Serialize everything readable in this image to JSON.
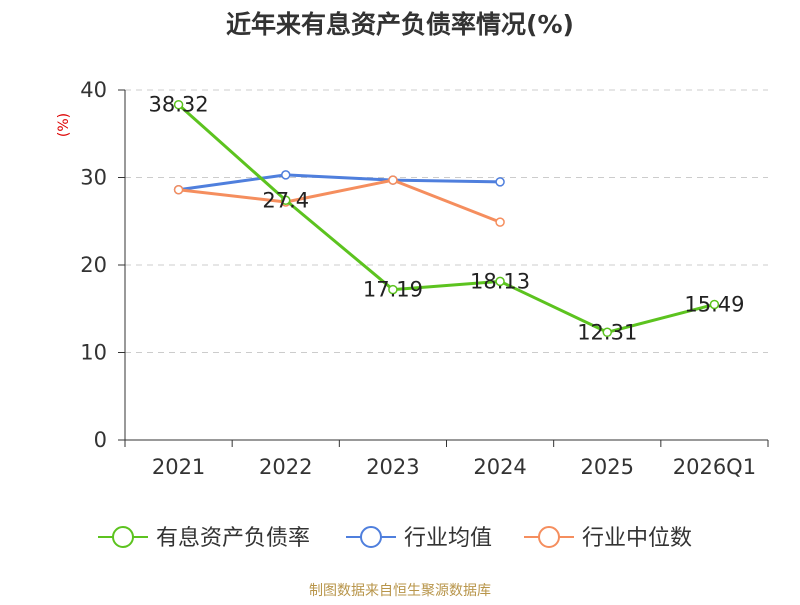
{
  "title": "近年来有息资产负债率情况(%)",
  "source": "制图数据来自恒生聚源数据库",
  "chart_data": {
    "type": "line",
    "title": "近年来有息资产负债率情况(%)",
    "ylabel": "(%)",
    "xlabel": "",
    "ylim": [
      0,
      40
    ],
    "yticks": [
      "0",
      "10",
      "20",
      "30",
      "40"
    ],
    "categories": [
      "2021",
      "2022",
      "2023",
      "2024",
      "2025",
      "2026Q1"
    ],
    "grid": true,
    "legend_position": "bottom",
    "series": [
      {
        "name": "有息资产负债率",
        "color": "#5cc31f",
        "values": [
          38.32,
          27.4,
          17.19,
          18.13,
          12.31,
          15.49
        ],
        "labels": [
          "38.32",
          "27.4",
          "17.19",
          "18.13",
          "12.31",
          "15.49"
        ]
      },
      {
        "name": "行业均值",
        "color": "#4f7fdd",
        "values": [
          28.6,
          30.3,
          29.7,
          29.5,
          null,
          null
        ]
      },
      {
        "name": "行业中位数",
        "color": "#f58e5e",
        "values": [
          28.6,
          27.2,
          29.7,
          24.9,
          null,
          null
        ]
      }
    ]
  },
  "colors": {
    "axis": "#333333",
    "grid": "#cccccc",
    "ylabel": "#dd0000",
    "source": "#b8954a",
    "title": "#333333"
  }
}
